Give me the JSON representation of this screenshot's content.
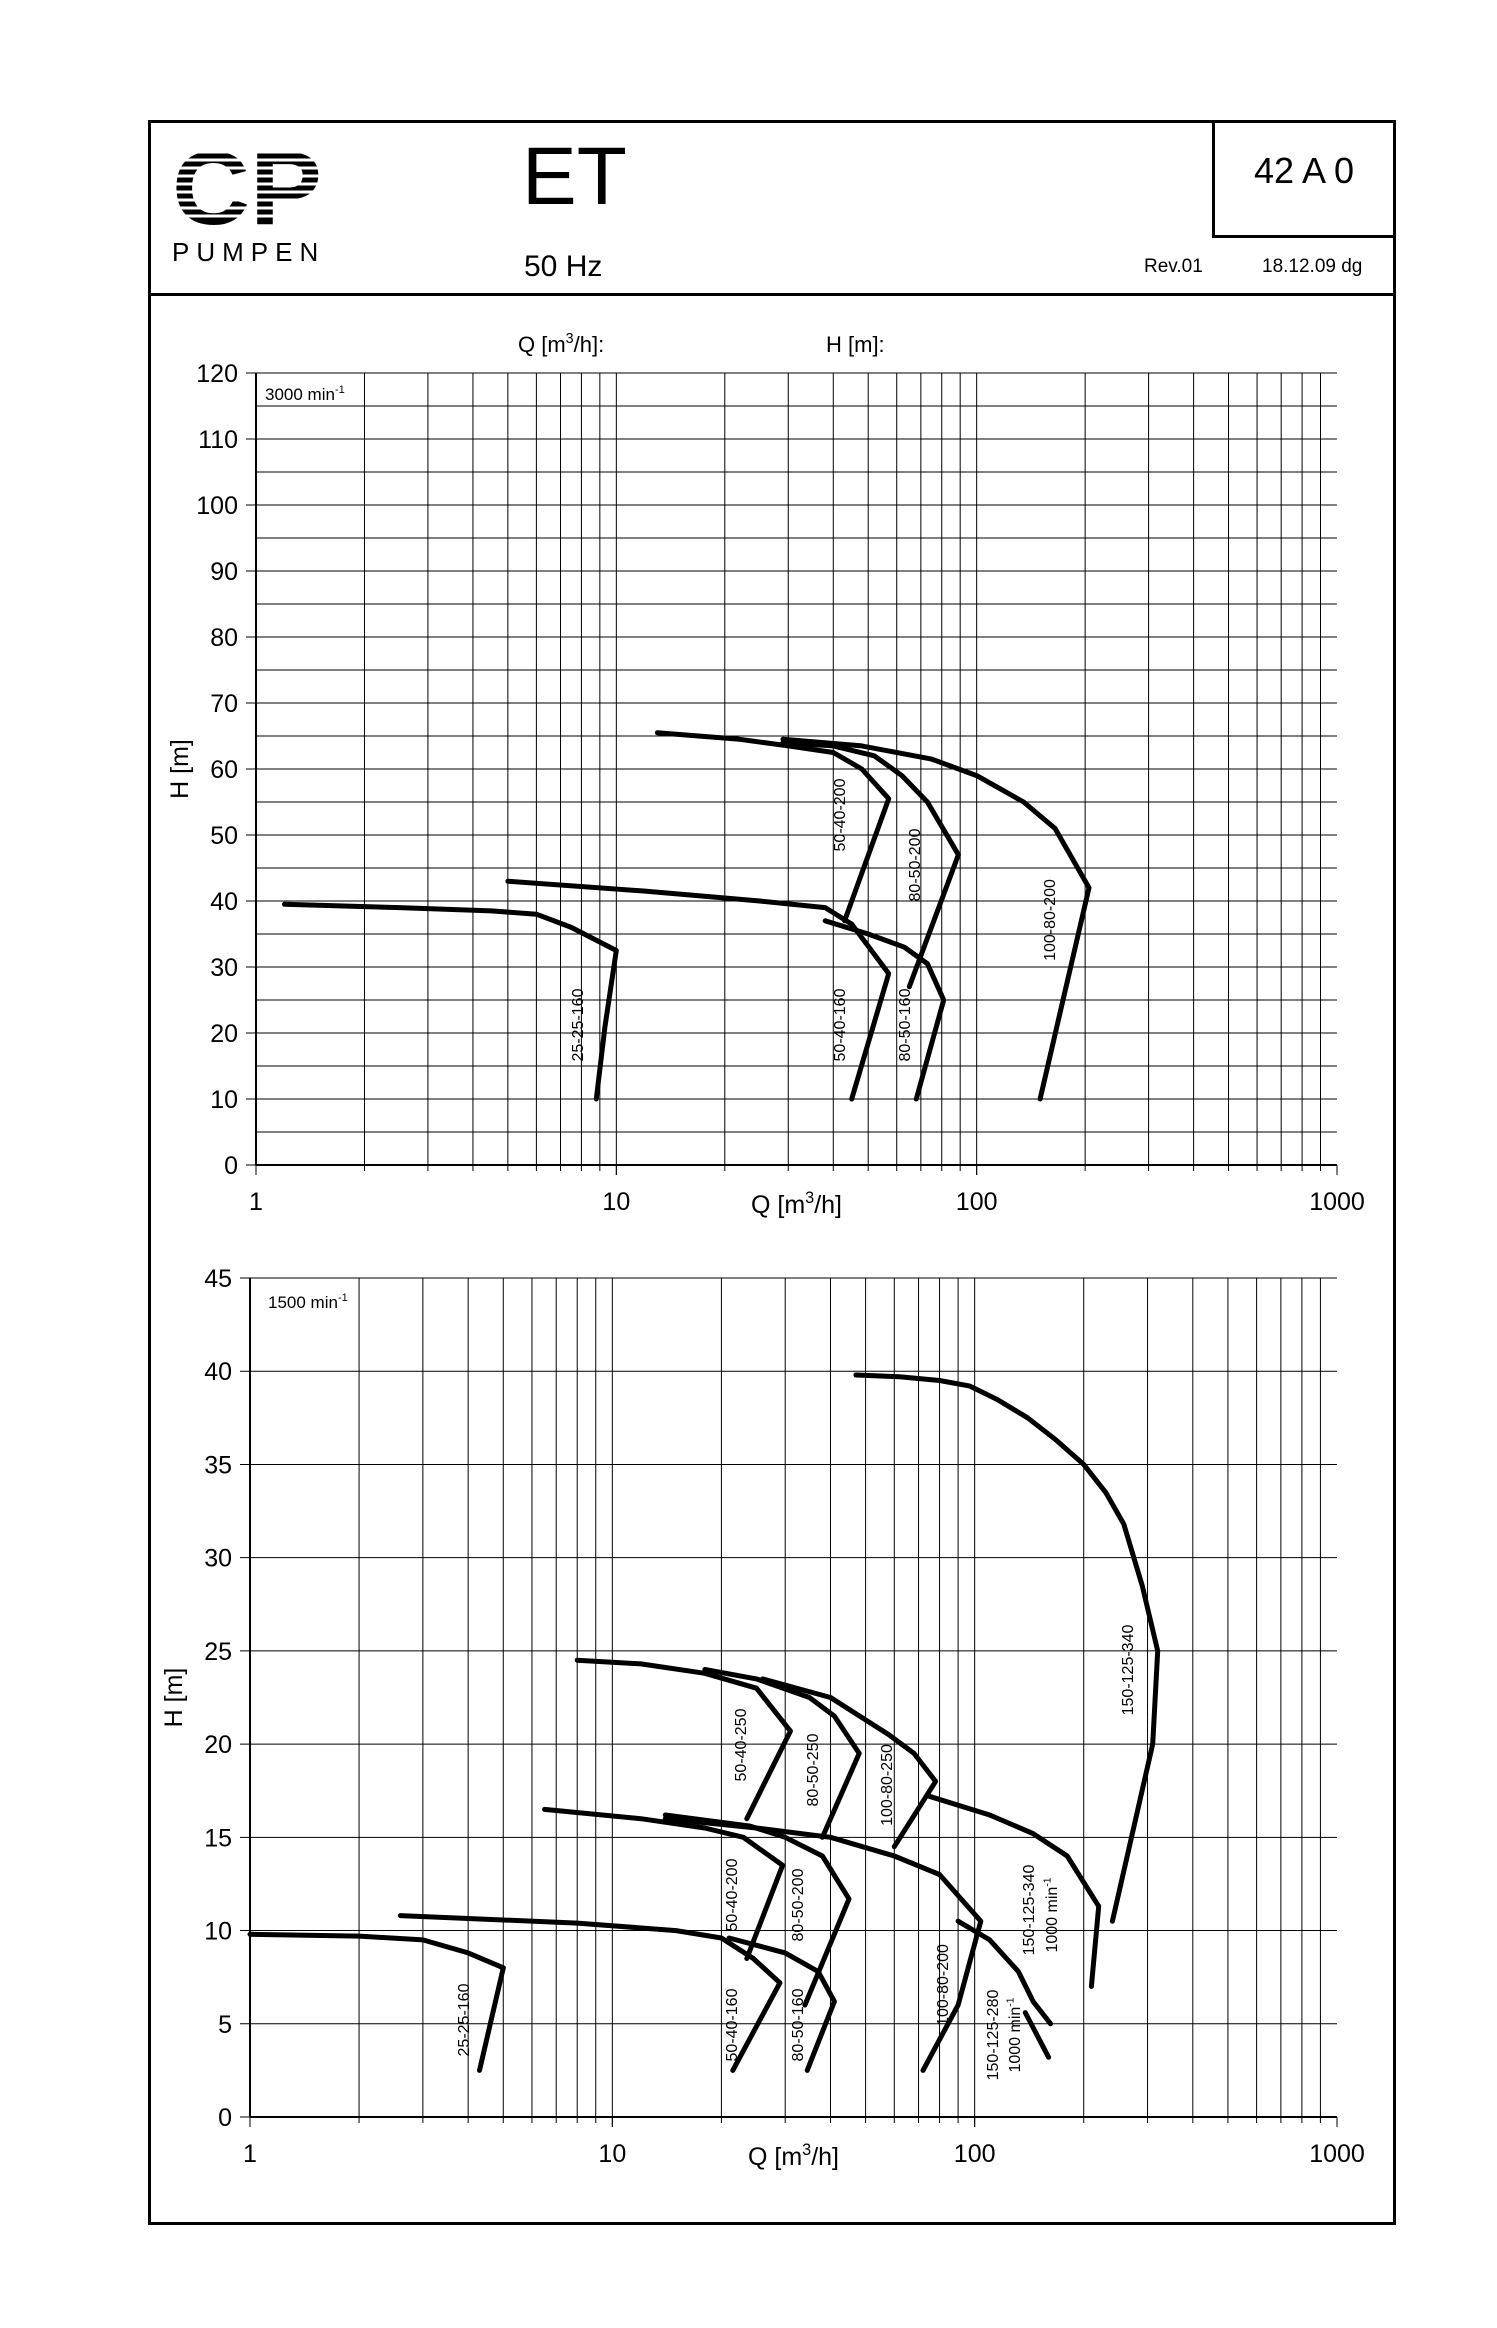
{
  "header": {
    "brand_line1": "CP",
    "brand_line2": "PUMPEN",
    "title": "ET",
    "frequency": "50 Hz",
    "doc_number": "42 A 0",
    "revision": "Rev.01",
    "date": "18.12.09 dg"
  },
  "chart_data": [
    {
      "type": "line",
      "speed_label": "3000 min-1",
      "header_labels": [
        "Q [m3/h]:",
        "H [m]:"
      ],
      "xlabel": "Q [m3/h]",
      "ylabel": "H [m]",
      "x_scale": "log",
      "xlim": [
        1,
        1000
      ],
      "ylim": [
        0,
        120
      ],
      "x_ticks": [
        "1",
        "10",
        "100",
        "1000"
      ],
      "y_ticks": [
        "0",
        "10",
        "20",
        "30",
        "40",
        "50",
        "60",
        "70",
        "80",
        "90",
        "100",
        "110",
        "120"
      ],
      "grid": true,
      "series": [
        {
          "name": "25-25-160",
          "x": [
            1.2,
            2.5,
            4.5,
            6,
            7.5,
            10,
            9.3,
            8.8
          ],
          "y": [
            39.5,
            39,
            38.5,
            38,
            36,
            32.5,
            21,
            10
          ]
        },
        {
          "name": "50-40-160",
          "x": [
            5,
            12,
            25,
            38,
            45,
            57,
            45
          ],
          "y": [
            43,
            41.5,
            40,
            39,
            36.5,
            29,
            10
          ]
        },
        {
          "name": "80-50-160",
          "x": [
            38,
            50,
            63,
            73,
            81,
            68
          ],
          "y": [
            37,
            35,
            33,
            30.5,
            25,
            10
          ]
        },
        {
          "name": "50-40-200",
          "x": [
            13,
            22,
            30,
            40,
            48,
            57,
            43
          ],
          "y": [
            65.5,
            64.5,
            63.5,
            62.5,
            60,
            55.5,
            37
          ]
        },
        {
          "name": "80-50-200",
          "x": [
            29,
            40,
            52,
            62,
            73,
            89,
            65
          ],
          "y": [
            64,
            63.5,
            62,
            59,
            55,
            47,
            27
          ]
        },
        {
          "name": "100-80-200",
          "x": [
            29,
            48,
            75,
            100,
            135,
            165,
            205,
            150
          ],
          "y": [
            64.5,
            63.5,
            61.5,
            59,
            55,
            51,
            42,
            10
          ]
        }
      ]
    },
    {
      "type": "line",
      "speed_label": "1500 min-1",
      "xlabel": "Q [m3/h]",
      "ylabel": "H [m]",
      "x_scale": "log",
      "xlim": [
        1,
        1000
      ],
      "ylim": [
        0,
        45
      ],
      "x_ticks": [
        "1",
        "10",
        "100",
        "1000"
      ],
      "y_ticks": [
        "0",
        "5",
        "10",
        "15",
        "20",
        "25",
        "30",
        "35",
        "40",
        "45"
      ],
      "grid": true,
      "series": [
        {
          "name": "25-25-160",
          "x": [
            1,
            2,
            3,
            4,
            5,
            4.3
          ],
          "y": [
            9.8,
            9.7,
            9.5,
            8.8,
            8,
            2.5
          ]
        },
        {
          "name": "50-40-160",
          "x": [
            2.6,
            8,
            15,
            20,
            24.5,
            29,
            21.5
          ],
          "y": [
            10.8,
            10.4,
            10,
            9.6,
            8.5,
            7.2,
            2.5
          ]
        },
        {
          "name": "80-50-160",
          "x": [
            21,
            30,
            37,
            41,
            34.5
          ],
          "y": [
            9.6,
            8.8,
            7.8,
            6.2,
            2.5
          ]
        },
        {
          "name": "50-40-200",
          "x": [
            6.5,
            12,
            18,
            23,
            29.5,
            23.5
          ],
          "y": [
            16.5,
            16,
            15.5,
            15,
            13.5,
            8.5
          ]
        },
        {
          "name": "80-50-200",
          "x": [
            14,
            24,
            30,
            38,
            45,
            34
          ],
          "y": [
            16.2,
            15.6,
            15,
            14,
            11.7,
            6
          ]
        },
        {
          "name": "100-80-200",
          "x": [
            14,
            25,
            40,
            60,
            80,
            104,
            90,
            72
          ],
          "y": [
            16,
            15.5,
            15,
            14,
            13,
            10.5,
            6,
            2.5
          ]
        },
        {
          "name": "50-40-250",
          "x": [
            8,
            12,
            18,
            25,
            31,
            23.5
          ],
          "y": [
            24.5,
            24.3,
            23.8,
            23,
            20.7,
            16
          ]
        },
        {
          "name": "80-50-250",
          "x": [
            18,
            25,
            35,
            41,
            48,
            38
          ],
          "y": [
            24,
            23.5,
            22.5,
            21.5,
            19.5,
            15
          ]
        },
        {
          "name": "100-80-250",
          "x": [
            26,
            40,
            58,
            68,
            78,
            60
          ],
          "y": [
            23.5,
            22.5,
            20.5,
            19.5,
            18,
            14.5
          ]
        },
        {
          "name": "150-125-280",
          "x": [
            90,
            110,
            132,
            145,
            162
          ],
          "y": [
            10.5,
            9.5,
            7.8,
            6.2,
            5
          ]
        },
        {
          "name": "150-125-340",
          "x": [
            47,
            62,
            80,
            97,
            115,
            140,
            168,
            200,
            230,
            258,
            290,
            320,
            310,
            240
          ],
          "y": [
            39.8,
            39.7,
            39.5,
            39.2,
            38.5,
            37.5,
            36.3,
            35,
            33.5,
            31.8,
            28.5,
            25,
            20,
            10.5
          ]
        },
        {
          "name": "150-125-280 1000 min-1",
          "x": [
            138,
            160
          ],
          "y": [
            5.6,
            3.2
          ]
        },
        {
          "name": "150-125-340 1000 min-1",
          "x": [
            75,
            110,
            145,
            180,
            220,
            210
          ],
          "y": [
            17.2,
            16.2,
            15.2,
            14,
            11.3,
            7
          ]
        }
      ],
      "curve_labels": [
        {
          "text": "25-25-160"
        },
        {
          "text": "50-40-160"
        },
        {
          "text": "80-50-160"
        },
        {
          "text": "50-40-200"
        },
        {
          "text": "80-50-200"
        },
        {
          "text": "100-80-200"
        },
        {
          "text": "50-40-250"
        },
        {
          "text": "80-50-250"
        },
        {
          "text": "100-80-250"
        },
        {
          "text": "150-125-340"
        },
        {
          "text": "150-125-340"
        },
        {
          "text": "1000 min-1"
        },
        {
          "text": "150-125-280"
        },
        {
          "text": "1000 min-1"
        }
      ]
    }
  ]
}
